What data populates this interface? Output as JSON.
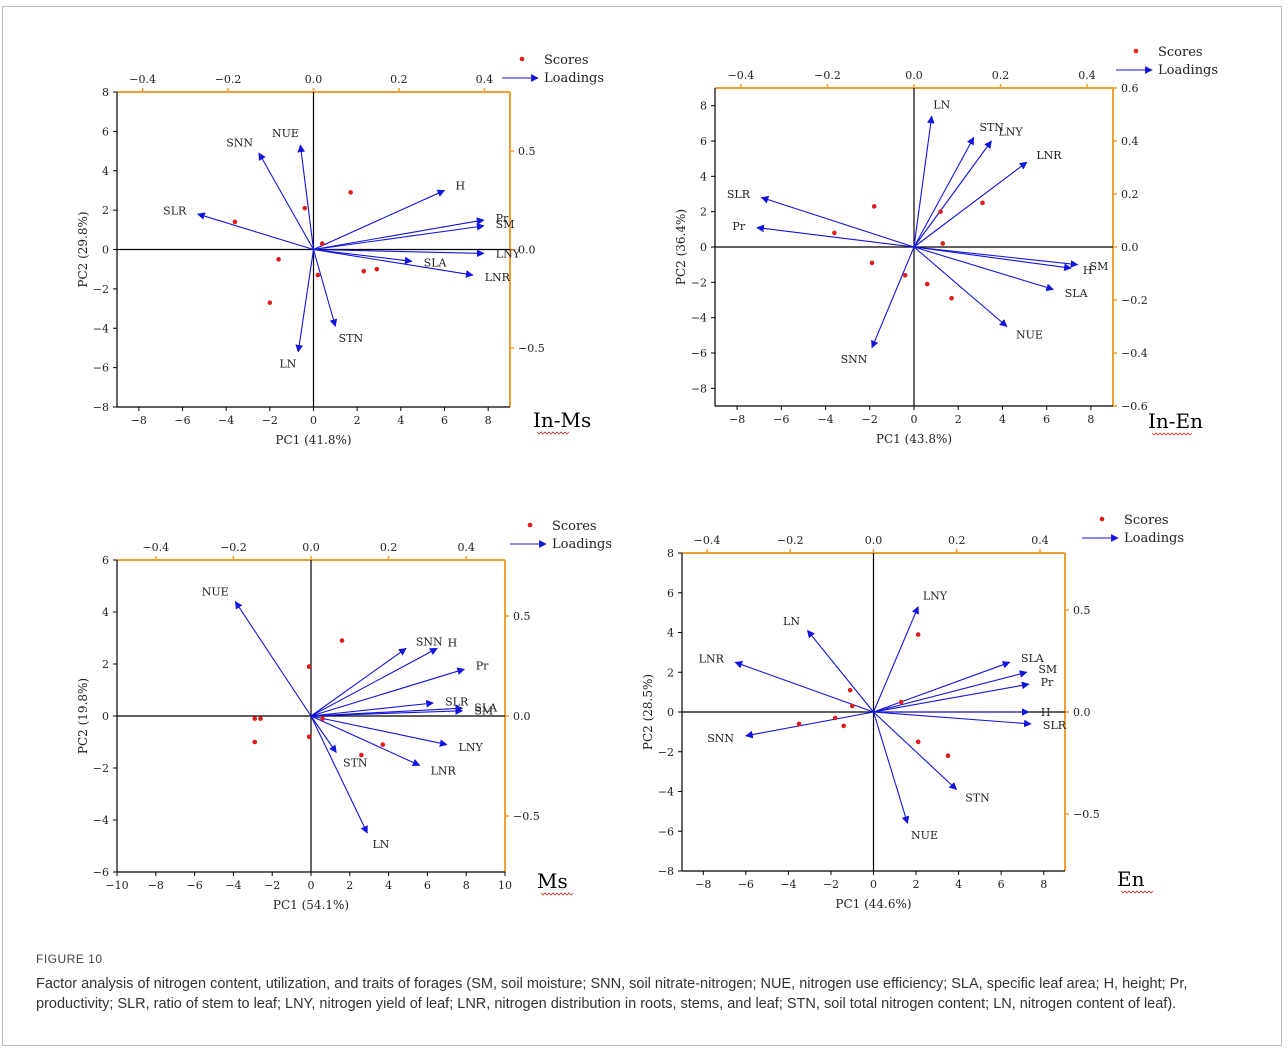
{
  "colors": {
    "axis": "#000000",
    "secondary_axis": "#f0a030",
    "scores": "#dd1c1c",
    "loadings": "#1414dd",
    "underline": "#c0392b"
  },
  "caption": {
    "label": "FIGURE 10",
    "text": "Factor analysis of nitrogen content, utilization, and traits of forages (SM, soil moisture; SNN, soil nitrate-nitrogen; NUE, nitrogen use efficiency; SLA, specific leaf area; H, height; Pr, productivity; SLR, ratio of stem to leaf; LNY, nitrogen yield of leaf; LNR, nitrogen distribution in roots, stems, and leaf; STN, soil total nitrogen content; LN, nitrogen content of leaf)."
  },
  "chart_data": [
    {
      "type": "scatter",
      "title": "In-Ms",
      "xlabel": "PC1 (41.8%)",
      "ylabel": "PC2 (29.8%)",
      "xlim": [
        -9,
        9
      ],
      "ylim": [
        -8,
        8
      ],
      "xticks": [
        -8,
        -6,
        -4,
        -2,
        0,
        2,
        4,
        6,
        8
      ],
      "yticks": [
        -8,
        -6,
        -4,
        -2,
        0,
        2,
        4,
        6,
        8
      ],
      "top_xlim": [
        -0.46,
        0.46
      ],
      "top_xticks": [
        -0.4,
        -0.2,
        0.0,
        0.2,
        0.4
      ],
      "right_ylim": [
        -0.8,
        0.8
      ],
      "right_yticks": [
        -0.5,
        0.0,
        0.5
      ],
      "legend": [
        "Scores",
        "Loadings"
      ],
      "scores": [
        [
          1.7,
          2.9
        ],
        [
          -0.4,
          2.1
        ],
        [
          -3.6,
          1.4
        ],
        [
          0.4,
          0.3
        ],
        [
          -1.6,
          -0.5
        ],
        [
          2.3,
          -1.1
        ],
        [
          2.9,
          -1.0
        ],
        [
          0.2,
          -1.3
        ],
        [
          -2.0,
          -2.7
        ]
      ],
      "loadings": [
        {
          "label": "H",
          "x": 6.0,
          "y": 3.0
        },
        {
          "label": "Pr",
          "x": 7.8,
          "y": 1.5
        },
        {
          "label": "SM",
          "x": 7.8,
          "y": 1.2
        },
        {
          "label": "SLA",
          "x": 4.5,
          "y": -0.6
        },
        {
          "label": "LNY",
          "x": 7.8,
          "y": -0.2
        },
        {
          "label": "LNR",
          "x": 7.3,
          "y": -1.3
        },
        {
          "label": "STN",
          "x": 1.0,
          "y": -3.9
        },
        {
          "label": "LN",
          "x": -0.7,
          "y": -5.2
        },
        {
          "label": "NUE",
          "x": -0.6,
          "y": 5.3
        },
        {
          "label": "SNN",
          "x": -2.5,
          "y": 4.9
        },
        {
          "label": "SLR",
          "x": -5.3,
          "y": 1.8
        }
      ]
    },
    {
      "type": "scatter",
      "title": "In-En",
      "xlabel": "PC1 (43.8%)",
      "ylabel": "PC2 (36.4%)",
      "xlim": [
        -9,
        9
      ],
      "ylim": [
        -9,
        9
      ],
      "xticks": [
        -8,
        -6,
        -4,
        -2,
        0,
        2,
        4,
        6,
        8
      ],
      "yticks": [
        -8,
        -6,
        -4,
        -2,
        0,
        2,
        4,
        6,
        8
      ],
      "top_xlim": [
        -0.46,
        0.46
      ],
      "top_xticks": [
        -0.4,
        -0.2,
        0.0,
        0.2,
        0.4
      ],
      "right_ylim": [
        -0.6,
        0.6
      ],
      "right_yticks": [
        -0.6,
        -0.4,
        -0.2,
        0.0,
        0.2,
        0.4,
        0.6
      ],
      "legend": [
        "Scores",
        "Loadings"
      ],
      "scores": [
        [
          -1.8,
          2.3
        ],
        [
          3.1,
          2.5
        ],
        [
          1.2,
          2.0
        ],
        [
          -3.6,
          0.8
        ],
        [
          1.3,
          0.2
        ],
        [
          -1.9,
          -0.9
        ],
        [
          -0.4,
          -1.6
        ],
        [
          0.6,
          -2.1
        ],
        [
          1.7,
          -2.9
        ]
      ],
      "loadings": [
        {
          "label": "LN",
          "x": 0.8,
          "y": 7.4
        },
        {
          "label": "STN",
          "x": 2.7,
          "y": 6.2
        },
        {
          "label": "LNY",
          "x": 3.5,
          "y": 6.0
        },
        {
          "label": "LNR",
          "x": 5.1,
          "y": 4.8
        },
        {
          "label": "SM",
          "x": 7.4,
          "y": -1.0
        },
        {
          "label": "H",
          "x": 7.1,
          "y": -1.2
        },
        {
          "label": "SLA",
          "x": 6.3,
          "y": -2.4
        },
        {
          "label": "NUE",
          "x": 4.2,
          "y": -4.5
        },
        {
          "label": "SNN",
          "x": -1.9,
          "y": -5.7
        },
        {
          "label": "SLR",
          "x": -6.9,
          "y": 2.8
        },
        {
          "label": "Pr",
          "x": -7.1,
          "y": 1.1
        }
      ]
    },
    {
      "type": "scatter",
      "title": "Ms",
      "xlabel": "PC1 (54.1%)",
      "ylabel": "PC2 (19.8%)",
      "xlim": [
        -10,
        10
      ],
      "ylim": [
        -6,
        6
      ],
      "xticks": [
        -10,
        -8,
        -6,
        -4,
        -2,
        0,
        2,
        4,
        6,
        8,
        10
      ],
      "yticks": [
        -6,
        -4,
        -2,
        0,
        2,
        4,
        6
      ],
      "top_xlim": [
        -0.5,
        0.5
      ],
      "top_xticks": [
        -0.4,
        -0.2,
        0.0,
        0.2,
        0.4
      ],
      "right_ylim": [
        -0.78,
        0.78
      ],
      "right_yticks": [
        -0.5,
        0.0,
        0.5
      ],
      "legend": [
        "Scores",
        "Loadings"
      ],
      "scores": [
        [
          1.6,
          2.9
        ],
        [
          -0.1,
          1.9
        ],
        [
          -2.9,
          -0.1
        ],
        [
          -2.6,
          -0.1
        ],
        [
          0.6,
          -0.1
        ],
        [
          -2.9,
          -1.0
        ],
        [
          -0.1,
          -0.8
        ],
        [
          2.6,
          -1.5
        ],
        [
          3.7,
          -1.1
        ]
      ],
      "loadings": [
        {
          "label": "NUE",
          "x": -3.9,
          "y": 4.4
        },
        {
          "label": "SNN",
          "x": 4.9,
          "y": 2.6
        },
        {
          "label": "H",
          "x": 6.5,
          "y": 2.6
        },
        {
          "label": "Pr",
          "x": 7.9,
          "y": 1.8
        },
        {
          "label": "SLR",
          "x": 6.3,
          "y": 0.5
        },
        {
          "label": "SLA",
          "x": 7.8,
          "y": 0.3
        },
        {
          "label": "SM",
          "x": 7.8,
          "y": 0.2
        },
        {
          "label": "LNY",
          "x": 7.0,
          "y": -1.1
        },
        {
          "label": "LNR",
          "x": 5.6,
          "y": -1.9
        },
        {
          "label": "STN",
          "x": 1.3,
          "y": -1.4
        },
        {
          "label": "LN",
          "x": 2.9,
          "y": -4.5
        }
      ]
    },
    {
      "type": "scatter",
      "title": "En",
      "xlabel": "PC1 (44.6%)",
      "ylabel": "PC2 (28.5%)",
      "xlim": [
        -9,
        9
      ],
      "ylim": [
        -8,
        8
      ],
      "xticks": [
        -8,
        -6,
        -4,
        -2,
        0,
        2,
        4,
        6,
        8
      ],
      "yticks": [
        -8,
        -6,
        -4,
        -2,
        0,
        2,
        4,
        6,
        8
      ],
      "top_xlim": [
        -0.46,
        0.46
      ],
      "top_xticks": [
        -0.4,
        -0.2,
        0.0,
        0.2,
        0.4
      ],
      "right_ylim": [
        -0.78,
        0.78
      ],
      "right_yticks": [
        -0.5,
        0.0,
        0.5
      ],
      "legend": [
        "Scores",
        "Loadings"
      ],
      "scores": [
        [
          2.1,
          3.9
        ],
        [
          -1.1,
          1.1
        ],
        [
          1.3,
          0.5
        ],
        [
          -1.0,
          0.3
        ],
        [
          -3.5,
          -0.6
        ],
        [
          -1.8,
          -0.3
        ],
        [
          -1.4,
          -0.7
        ],
        [
          2.1,
          -1.5
        ],
        [
          3.5,
          -2.2
        ]
      ],
      "loadings": [
        {
          "label": "LNY",
          "x": 2.1,
          "y": 5.3
        },
        {
          "label": "LN",
          "x": -3.1,
          "y": 4.1
        },
        {
          "label": "LNR",
          "x": -6.5,
          "y": 2.5
        },
        {
          "label": "SLA",
          "x": 6.4,
          "y": 2.5
        },
        {
          "label": "SM",
          "x": 7.2,
          "y": 2.0
        },
        {
          "label": "Pr",
          "x": 7.3,
          "y": 1.4
        },
        {
          "label": "H",
          "x": 7.3,
          "y": 0.0
        },
        {
          "label": "SLR",
          "x": 7.4,
          "y": -0.6
        },
        {
          "label": "STN",
          "x": 3.9,
          "y": -3.9
        },
        {
          "label": "NUE",
          "x": 1.6,
          "y": -5.6
        },
        {
          "label": "SNN",
          "x": -6.0,
          "y": -1.2
        }
      ]
    }
  ]
}
